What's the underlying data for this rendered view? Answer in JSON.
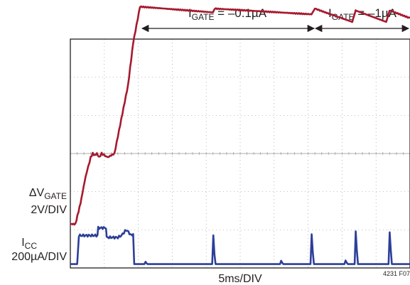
{
  "chart_data": {
    "type": "line",
    "annotations": {
      "range1": {
        "main": "I",
        "sub": "GATE",
        "rest": " = –0.1µA"
      },
      "range2": {
        "main": "I",
        "sub": "GATE",
        "rest": " = –1µA"
      }
    },
    "channels": {
      "gate": {
        "line1_main": "ΔV",
        "line1_sub": "GATE",
        "scale": "2V/DIV",
        "color": "#a6192e"
      },
      "icc": {
        "line1_main": "I",
        "line1_sub": "CC",
        "scale": "200µA/DIV",
        "color": "#2e3f98"
      }
    },
    "xlabel": "5ms/DIV",
    "figure_id": "4231 F07",
    "grid": {
      "x_divisions": 10,
      "y_divisions": 6
    },
    "series": [
      {
        "name": "ΔVGATE",
        "units": "divisions",
        "x": [
          0,
          0.15,
          0.3,
          0.45,
          0.6,
          0.66,
          0.72,
          0.78,
          0.85,
          0.92,
          1.1,
          1.3,
          1.5,
          1.7,
          1.85,
          2.05,
          4.2,
          4.25,
          7.1,
          7.2,
          7.35,
          8.3,
          8.4,
          8.55,
          9.3,
          9.4,
          10
        ],
        "y": [
          1.15,
          1.15,
          1.7,
          2.4,
          2.9,
          3.0,
          2.95,
          3.0,
          2.9,
          3.0,
          2.9,
          3.0,
          3.9,
          4.8,
          5.9,
          6.85,
          6.7,
          6.8,
          6.65,
          6.8,
          6.75,
          6.45,
          6.75,
          6.7,
          6.45,
          6.75,
          6.55
        ]
      },
      {
        "name": "ICC",
        "units": "divisions",
        "x": [
          0,
          0.2,
          0.25,
          0.8,
          0.82,
          1.05,
          1.07,
          1.4,
          1.5,
          1.65,
          1.8,
          1.85,
          1.88,
          10
        ],
        "y": [
          0.1,
          0.1,
          0.85,
          0.85,
          1.05,
          1.05,
          0.8,
          0.8,
          0.85,
          1.0,
          0.85,
          0.9,
          0.1,
          0.1
        ],
        "spikes_at": [
          2.2,
          4.2,
          6.2,
          7.1,
          8.1,
          8.4,
          9.4
        ],
        "spike_heights": [
          0.08,
          0.9,
          0.1,
          0.85,
          0.1,
          0.9,
          0.85
        ]
      }
    ]
  }
}
